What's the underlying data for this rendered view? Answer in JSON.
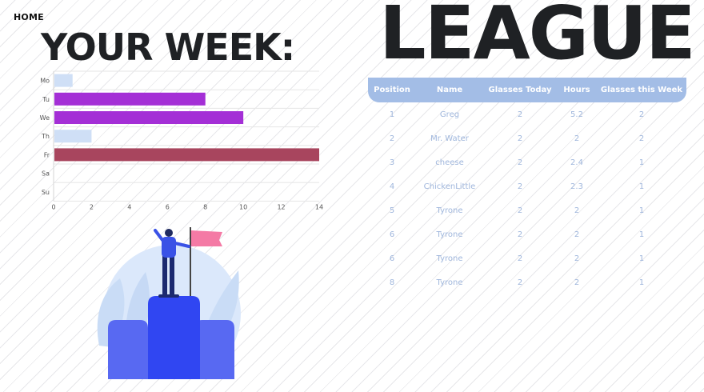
{
  "nav": {
    "home_label": "HOME"
  },
  "headings": {
    "your_week": "YOUR WEEK:",
    "league": "LEAGUE"
  },
  "chart_data": {
    "type": "bar",
    "orientation": "horizontal",
    "categories": [
      "Mo",
      "Tu",
      "We",
      "Th",
      "Fr",
      "Sa",
      "Su"
    ],
    "values": [
      1,
      8,
      10,
      2,
      14,
      0,
      0
    ],
    "colors": [
      "#cfdff6",
      "#a42fd6",
      "#a42fd6",
      "#cfdff6",
      "#a8455e",
      "#cfdff6",
      "#cfdff6"
    ],
    "xlim": [
      0,
      14
    ],
    "xticks": [
      "0",
      "2",
      "4",
      "6",
      "8",
      "10",
      "12",
      "14"
    ],
    "grid": true
  },
  "league": {
    "columns": [
      "Position",
      "Name",
      "Glasses Today",
      "Hours",
      "Glasses this Week"
    ],
    "rows": [
      [
        "1",
        "Greg",
        "2",
        "5.2",
        "2"
      ],
      [
        "2",
        "Mr. Water",
        "2",
        "2",
        "2"
      ],
      [
        "3",
        "cheese",
        "2",
        "2.4",
        "1"
      ],
      [
        "4",
        "ChickenLittle",
        "2",
        "2.3",
        "1"
      ],
      [
        "5",
        "Tyrone",
        "2",
        "2",
        "1"
      ],
      [
        "6",
        "Tyrone",
        "2",
        "2",
        "1"
      ],
      [
        "6",
        "Tyrone",
        "2",
        "2",
        "1"
      ],
      [
        "8",
        "Tyrone",
        "2",
        "2",
        "1"
      ]
    ]
  },
  "theme": {
    "header_bg": "#a3bde6",
    "cell_text": "#9fb6dc",
    "podium": "#3b4cf0",
    "flag": "#f47aa5"
  },
  "illustration": {
    "icon": "podium-winner-icon"
  }
}
